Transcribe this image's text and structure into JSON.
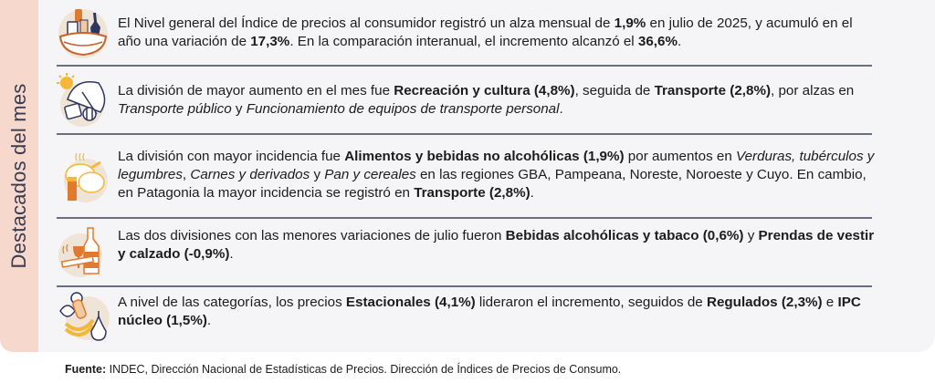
{
  "side": {
    "label": "Destacados del mes",
    "color": "#f6d8cc"
  },
  "items": [
    {
      "icon": "shopping-basket-icon",
      "segments": [
        {
          "t": "El Nivel general del Índice de precios al consumidor registró un alza mensual de "
        },
        {
          "t": "1,9%",
          "b": true
        },
        {
          "t": " en julio de 2025, y acumuló en el año una variación de "
        },
        {
          "t": "17,3%",
          "b": true
        },
        {
          "t": ". En la comparación interanual, el incremento alcanzó el "
        },
        {
          "t": "36,6%",
          "b": true
        },
        {
          "t": "."
        }
      ]
    },
    {
      "icon": "beach-umbrella-icon",
      "segments": [
        {
          "t": "La división de mayor aumento en el mes fue "
        },
        {
          "t": "Recreación y cultura (4,8%)",
          "b": true
        },
        {
          "t": ", seguida de "
        },
        {
          "t": "Transporte (2,8%)",
          "b": true
        },
        {
          "t": ", por alzas en "
        },
        {
          "t": "Transporte público",
          "i": true
        },
        {
          "t": " y "
        },
        {
          "t": "Funcionamiento de equipos de transporte personal",
          "i": true
        },
        {
          "t": "."
        }
      ]
    },
    {
      "icon": "roast-chicken-icon",
      "segments": [
        {
          "t": "La división con mayor incidencia fue "
        },
        {
          "t": "Alimentos y bebidas no alcohólicas (1,9%)",
          "b": true
        },
        {
          "t": " por aumentos en "
        },
        {
          "t": "Verduras, tubérculos y legumbres",
          "i": true
        },
        {
          "t": ", "
        },
        {
          "t": "Carnes y derivados",
          "i": true
        },
        {
          "t": " y "
        },
        {
          "t": "Pan y cereales",
          "i": true
        },
        {
          "t": " en las regiones GBA, Pampeana, Noreste, Noroeste y Cuyo. En cambio, en Patagonia la mayor incidencia se registró en "
        },
        {
          "t": "Transporte (2,8%)",
          "b": true
        },
        {
          "t": "."
        }
      ]
    },
    {
      "icon": "wine-and-tobacco-icon",
      "segments": [
        {
          "t": "Las dos divisiones con las menores variaciones de julio fueron "
        },
        {
          "t": "Bebidas alcohólicas y tabaco (0,6%)",
          "b": true
        },
        {
          "t": " y "
        },
        {
          "t": "Prendas de vestir y calzado (-0,9%)",
          "b": true
        },
        {
          "t": "."
        }
      ]
    },
    {
      "icon": "fruits-vegetables-icon",
      "segments": [
        {
          "t": "A nivel de las categorías, los precios "
        },
        {
          "t": "Estacionales (4,1%)",
          "b": true
        },
        {
          "t": " lideraron el incremento, seguidos de "
        },
        {
          "t": "Regulados (2,3%)",
          "b": true
        },
        {
          "t": " e "
        },
        {
          "t": "IPC núcleo (1,5%)",
          "b": true
        },
        {
          "t": "."
        }
      ]
    }
  ],
  "footer": {
    "label": "Fuente:",
    "text": " INDEC, Dirección Nacional de Estadísticas de Precios. Dirección de Índices de Precios de Consumo."
  },
  "colors": {
    "panel_bg": "#f5f5f7",
    "separator": "#6b6d80",
    "accent_orange": "#e07a2e",
    "icon_bg": "#efe4d6",
    "navy": "#2e3560"
  }
}
